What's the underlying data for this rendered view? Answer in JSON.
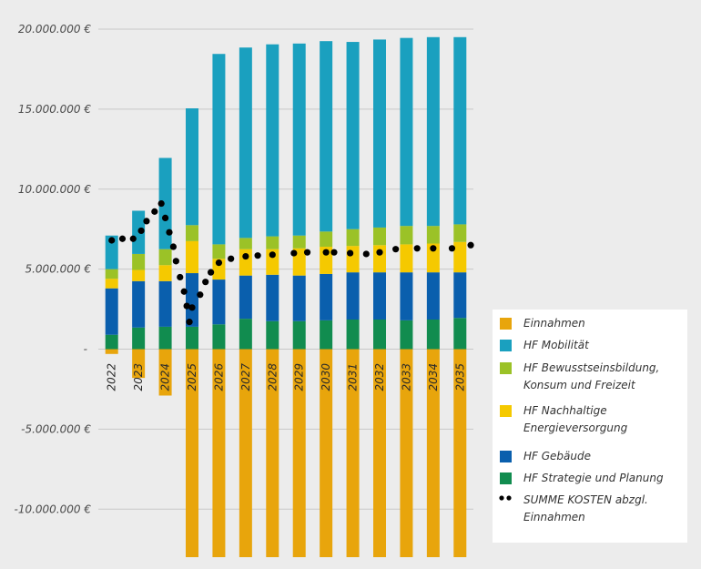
{
  "chart_data": {
    "type": "bar",
    "stacked": true,
    "categories": [
      "2022",
      "2023",
      "2024",
      "2025",
      "2026",
      "2027",
      "2028",
      "2029",
      "2030",
      "2031",
      "2032",
      "2033",
      "2034",
      "2035"
    ],
    "ylim": [
      -13000000,
      20000000
    ],
    "yticks": [
      {
        "value": 20000000,
        "label": "20.000.000 €"
      },
      {
        "value": 15000000,
        "label": "15.000.000 €"
      },
      {
        "value": 10000000,
        "label": "10.000.000 €"
      },
      {
        "value": 5000000,
        "label": "5.000.000 €"
      },
      {
        "value": 0,
        "label": "-"
      },
      {
        "value": -5000000,
        "label": "-5.000.000 €"
      },
      {
        "value": -10000000,
        "label": "-10.000.000 €"
      }
    ],
    "grid": true,
    "legend_position": "bottom-right",
    "series": [
      {
        "name": "Einnahmen",
        "color": "#E8A50C",
        "values": [
          -300000,
          -1800000,
          -2900000,
          -13000000,
          -13000000,
          -13000000,
          -13000000,
          -13000000,
          -13000000,
          -13000000,
          -13000000,
          -13000000,
          -13000000,
          -13000000
        ]
      },
      {
        "name": "HF Strategie und Planung",
        "color": "#118C4F",
        "values": [
          900000,
          1350000,
          1400000,
          1400000,
          1550000,
          1900000,
          1750000,
          1750000,
          1800000,
          1850000,
          1850000,
          1800000,
          1850000,
          1950000
        ]
      },
      {
        "name": "HF Gebäude",
        "color": "#0A5FAD",
        "values": [
          2900000,
          2900000,
          2850000,
          3350000,
          2800000,
          2700000,
          2900000,
          2850000,
          2900000,
          2950000,
          2950000,
          3000000,
          2950000,
          2850000
        ]
      },
      {
        "name": "HF Nachhaltige Energieversorgung",
        "color": "#F5C900",
        "values": [
          600000,
          700000,
          1000000,
          2000000,
          1300000,
          1650000,
          1600000,
          1700000,
          1700000,
          1650000,
          1700000,
          1750000,
          1800000,
          1900000
        ]
      },
      {
        "name": "HF Bewusstseinsbildung, Konsum und Freizeit",
        "color": "#9BC227",
        "values": [
          600000,
          1000000,
          1000000,
          1000000,
          900000,
          700000,
          800000,
          800000,
          950000,
          1050000,
          1100000,
          1150000,
          1100000,
          1100000
        ]
      },
      {
        "name": "HF Mobilität",
        "color": "#1AA0BF",
        "values": [
          2100000,
          2700000,
          5700000,
          7300000,
          11900000,
          11900000,
          12000000,
          12000000,
          11900000,
          11700000,
          11750000,
          11750000,
          11800000,
          11700000
        ]
      }
    ],
    "line_series": {
      "name": "SUMME KOSTEN abzgl. Einnahmen",
      "style": "dotted",
      "color": "#000000",
      "points": [
        {
          "x": 2022.0,
          "y": 6800000
        },
        {
          "x": 2022.4,
          "y": 6900000
        },
        {
          "x": 2022.8,
          "y": 6900000
        },
        {
          "x": 2023.1,
          "y": 7400000
        },
        {
          "x": 2023.3,
          "y": 8000000
        },
        {
          "x": 2023.6,
          "y": 8600000
        },
        {
          "x": 2023.85,
          "y": 9100000
        },
        {
          "x": 2024.0,
          "y": 8200000
        },
        {
          "x": 2024.15,
          "y": 7300000
        },
        {
          "x": 2024.3,
          "y": 6400000
        },
        {
          "x": 2024.4,
          "y": 5500000
        },
        {
          "x": 2024.55,
          "y": 4500000
        },
        {
          "x": 2024.7,
          "y": 3600000
        },
        {
          "x": 2024.8,
          "y": 2700000
        },
        {
          "x": 2024.9,
          "y": 1700000
        },
        {
          "x": 2025.0,
          "y": 2600000
        },
        {
          "x": 2025.3,
          "y": 3400000
        },
        {
          "x": 2025.5,
          "y": 4200000
        },
        {
          "x": 2025.7,
          "y": 4800000
        },
        {
          "x": 2026.0,
          "y": 5400000
        },
        {
          "x": 2026.45,
          "y": 5650000
        },
        {
          "x": 2027.0,
          "y": 5800000
        },
        {
          "x": 2027.45,
          "y": 5850000
        },
        {
          "x": 2028.0,
          "y": 5900000
        },
        {
          "x": 2028.8,
          "y": 6000000
        },
        {
          "x": 2029.3,
          "y": 6050000
        },
        {
          "x": 2030.0,
          "y": 6050000
        },
        {
          "x": 2030.3,
          "y": 6050000
        },
        {
          "x": 2030.9,
          "y": 6000000
        },
        {
          "x": 2031.5,
          "y": 5950000
        },
        {
          "x": 2032.0,
          "y": 6050000
        },
        {
          "x": 2032.6,
          "y": 6250000
        },
        {
          "x": 2033.4,
          "y": 6300000
        },
        {
          "x": 2034.0,
          "y": 6300000
        },
        {
          "x": 2034.7,
          "y": 6300000
        },
        {
          "x": 2035.4,
          "y": 6500000
        }
      ]
    }
  },
  "legend": {
    "items": [
      {
        "label_lines": [
          "Einnahmen"
        ],
        "color": "#E8A50C"
      },
      {
        "label_lines": [
          "HF Mobilität"
        ],
        "color": "#1AA0BF"
      },
      {
        "label_lines": [
          "HF Bewusstseinsbildung,",
          "Konsum und Freizeit"
        ],
        "color": "#9BC227"
      },
      {
        "label_lines": [
          "HF Nachhaltige",
          "Energieversorgung"
        ],
        "color": "#F5C900"
      },
      {
        "label_lines": [
          "HF Gebäude"
        ],
        "color": "#0A5FAD"
      },
      {
        "label_lines": [
          "HF Strategie und Planung"
        ],
        "color": "#118C4F"
      },
      {
        "label_lines": [
          "SUMME KOSTEN abzgl.",
          "Einnahmen"
        ],
        "color": "#000000",
        "marker": "dots"
      }
    ]
  }
}
